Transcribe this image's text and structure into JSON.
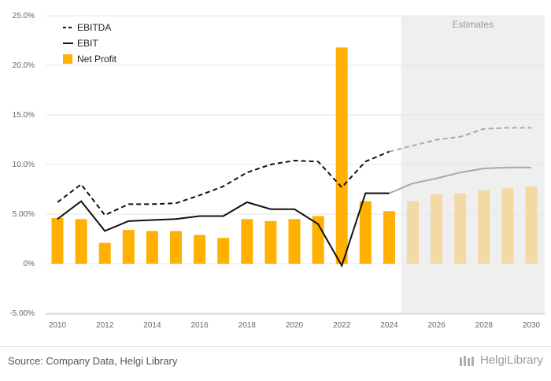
{
  "chart_data": {
    "type": "bar+line",
    "x": [
      2010,
      2011,
      2012,
      2013,
      2014,
      2015,
      2016,
      2017,
      2018,
      2019,
      2020,
      2021,
      2022,
      2023,
      2024,
      2025,
      2026,
      2027,
      2028,
      2029,
      2030
    ],
    "x_ticks": [
      "2010",
      "2012",
      "2014",
      "2016",
      "2018",
      "2020",
      "2022",
      "2024",
      "2026",
      "2028",
      "2030"
    ],
    "y_ticks": [
      "25.0%",
      "20.0%",
      "15.0%",
      "10.0%",
      "5.00%",
      "0%",
      "-5.00%"
    ],
    "ylim": [
      -5,
      25
    ],
    "estimate_start_year": 2025,
    "estimates_label": "Estimates",
    "series": [
      {
        "name": "EBITDA",
        "kind": "line",
        "dash": true,
        "values": [
          6.2,
          8.0,
          4.9,
          6.0,
          6.0,
          6.1,
          6.9,
          7.8,
          9.2,
          10.0,
          10.4,
          10.3,
          7.7,
          10.3,
          11.3,
          11.9,
          12.5,
          12.8,
          13.6,
          13.7,
          13.7
        ]
      },
      {
        "name": "EBIT",
        "kind": "line",
        "dash": false,
        "values": [
          4.5,
          6.3,
          3.3,
          4.3,
          4.4,
          4.5,
          4.8,
          4.8,
          6.2,
          5.5,
          5.5,
          4.0,
          -0.2,
          7.1,
          7.1,
          8.1,
          8.6,
          9.2,
          9.6,
          9.7,
          9.7
        ]
      },
      {
        "name": "Net Profit",
        "kind": "bar",
        "values": [
          4.6,
          4.5,
          2.1,
          3.4,
          3.3,
          3.3,
          2.9,
          2.6,
          4.5,
          4.3,
          4.5,
          4.8,
          21.8,
          6.3,
          5.3,
          6.3,
          7.0,
          7.1,
          7.4,
          7.6,
          7.8
        ]
      }
    ],
    "legend": {
      "position": "top-left",
      "entries": [
        "EBITDA",
        "EBIT",
        "Net Profit"
      ]
    },
    "colors": {
      "bar": "#FFB000",
      "bar_estimate": "#F3D9A3",
      "line": "#111111",
      "line_estimate": "#A8A8A8",
      "estimate_band": "#EFEFEF",
      "grid": "#E6E6E6"
    }
  },
  "footer": {
    "source": "Source: Company Data, Helgi Library",
    "brand": "HelgiLibrary",
    "brand_icon": "library-icon"
  }
}
